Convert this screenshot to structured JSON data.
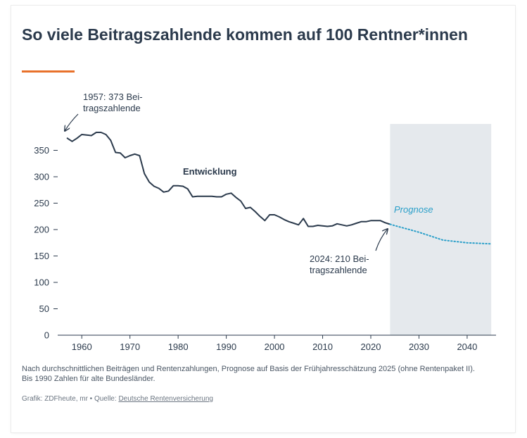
{
  "title": "So viele Beitragszahlende kommen auf 100 Rentner*innen",
  "colors": {
    "accent": "#e8712b",
    "line": "#2b3a4c",
    "forecast": "#2a9fc9",
    "forecast_band": "#e5e9ed"
  },
  "chart_data": {
    "type": "line",
    "title": "So viele Beitragszahlende kommen auf 100 Rentner*innen",
    "xlabel": "",
    "ylabel": "",
    "xlim": [
      1955,
      2046
    ],
    "ylim": [
      0,
      400
    ],
    "x_ticks": [
      1960,
      1970,
      1980,
      1990,
      2000,
      2010,
      2020,
      2030,
      2040
    ],
    "y_ticks": [
      0,
      50,
      100,
      150,
      200,
      250,
      300,
      350
    ],
    "forecast_band": [
      2024,
      2045
    ],
    "series": [
      {
        "name": "Entwicklung",
        "style": "solid",
        "x": [
          1957,
          1958,
          1959,
          1960,
          1961,
          1962,
          1963,
          1964,
          1965,
          1966,
          1967,
          1968,
          1969,
          1970,
          1971,
          1972,
          1973,
          1974,
          1975,
          1976,
          1977,
          1978,
          1979,
          1980,
          1981,
          1982,
          1983,
          1984,
          1985,
          1986,
          1987,
          1988,
          1989,
          1990,
          1991,
          1992,
          1993,
          1994,
          1995,
          1996,
          1997,
          1998,
          1999,
          2000,
          2001,
          2002,
          2003,
          2004,
          2005,
          2006,
          2007,
          2008,
          2009,
          2010,
          2011,
          2012,
          2013,
          2014,
          2015,
          2016,
          2017,
          2018,
          2019,
          2020,
          2021,
          2022,
          2023,
          2024
        ],
        "y": [
          373,
          367,
          373,
          380,
          379,
          378,
          384,
          384,
          380,
          369,
          346,
          345,
          336,
          340,
          343,
          340,
          306,
          290,
          282,
          278,
          271,
          273,
          283,
          283,
          282,
          277,
          262,
          263,
          263,
          263,
          263,
          262,
          262,
          267,
          269,
          261,
          254,
          240,
          242,
          234,
          225,
          217,
          228,
          228,
          224,
          219,
          215,
          212,
          209,
          221,
          206,
          206,
          208,
          207,
          206,
          207,
          211,
          209,
          207,
          209,
          212,
          215,
          215,
          217,
          217,
          217,
          213,
          210
        ]
      },
      {
        "name": "Prognose",
        "style": "dotted",
        "x": [
          2024,
          2026,
          2028,
          2030,
          2032,
          2035,
          2040,
          2045
        ],
        "y": [
          210,
          205,
          200,
          195,
          189,
          180,
          175,
          173
        ]
      }
    ],
    "annotations": [
      {
        "text_lines": [
          "1957: 373 Bei-",
          "tragszahlende"
        ]
      },
      {
        "text_lines": [
          "2024: 210 Bei-",
          "tragszahlende"
        ]
      },
      {
        "text": "Entwicklung"
      },
      {
        "text": "Prognose"
      }
    ]
  },
  "footnote": "Nach durchschnittlichen Beiträgen und Rentenzahlungen, Prognose auf Basis der Frühjahresschätzung 2025 (ohne Rentenpaket II). Bis 1990 Zahlen für alte Bundesländer.",
  "credits": {
    "prefix": "Grafik: ZDFheute, mr • Quelle: ",
    "source_link": "Deutsche Rentenversicherung"
  }
}
